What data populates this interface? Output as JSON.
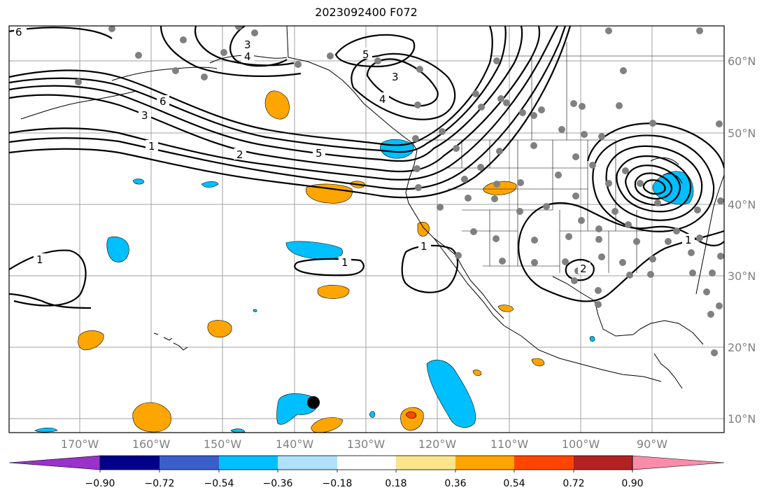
{
  "title": "2023092400 F072",
  "map": {
    "lat_labels": [
      "60°N",
      "50°N",
      "40°N",
      "30°N",
      "20°N",
      "10°N"
    ],
    "lon_labels": [
      "170°W",
      "160°W",
      "150°W",
      "140°W",
      "130°W",
      "120°W",
      "110°W",
      "100°W",
      "90°W"
    ],
    "contour_labels": [
      "6",
      "3",
      "4",
      "5",
      "3",
      "4",
      "6",
      "3",
      "1",
      "2",
      "5",
      "1",
      "1",
      "1",
      "2",
      "1"
    ],
    "colors": {
      "grid": "#a0a0a0",
      "contour": "#000000",
      "station": "#808080",
      "neg_fill": "#00bfff",
      "pos_fill": "#ffa500",
      "pos_strong": "#ff4500"
    }
  },
  "colorbar": {
    "tick_labels": [
      "−0.90",
      "−0.72",
      "−0.54",
      "−0.36",
      "−0.18",
      "0.18",
      "0.36",
      "0.54",
      "0.72",
      "0.90"
    ],
    "colors": [
      "#9932cc",
      "#00008b",
      "#3a5fcd",
      "#00bfff",
      "#b0e0fa",
      "#ffffff",
      "#fae58c",
      "#ffa500",
      "#ff4500",
      "#b22222",
      "#fa8caa"
    ]
  }
}
